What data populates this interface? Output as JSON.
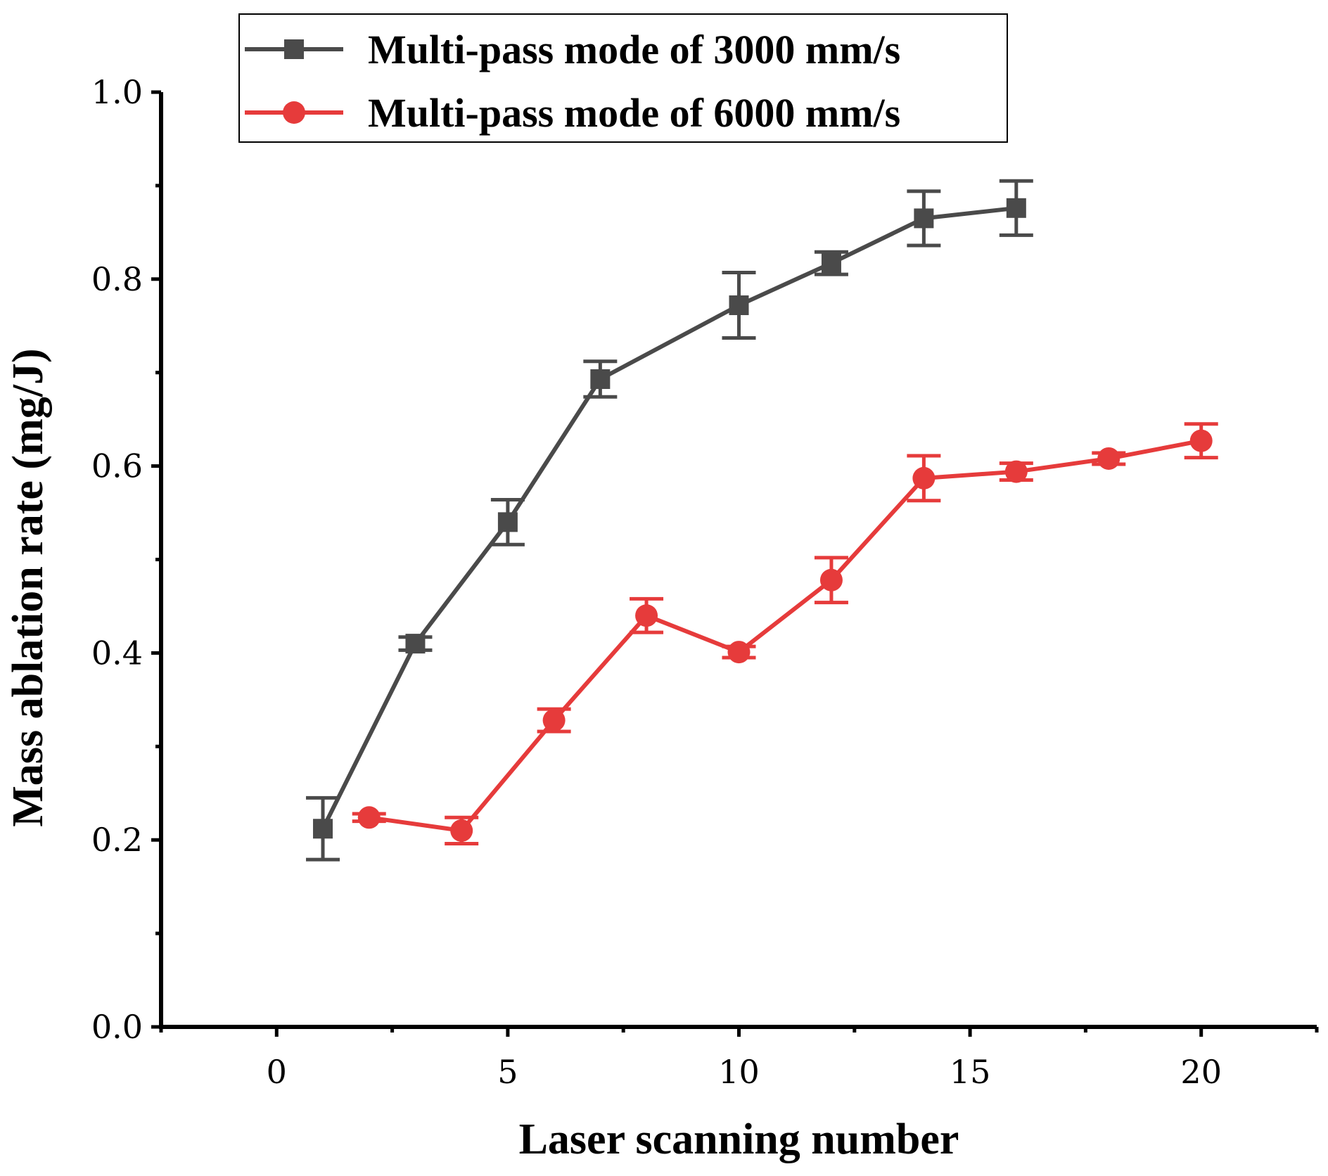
{
  "chart_data": {
    "type": "line",
    "title": "",
    "xlabel": "Laser scanning number",
    "ylabel": "Mass ablation rate (mg/J)",
    "xlim": [
      -2.5,
      22.5
    ],
    "ylim": [
      0.0,
      1.0
    ],
    "x_ticks": [
      0,
      5,
      10,
      15,
      20
    ],
    "x_tick_labels": [
      "0",
      "5",
      "10",
      "15",
      "20"
    ],
    "y_ticks": [
      0.0,
      0.2,
      0.4,
      0.6,
      0.8,
      1.0
    ],
    "y_tick_labels": [
      "0.0",
      "0.2",
      "0.4",
      "0.6",
      "0.8",
      "1.0"
    ],
    "grid": false,
    "legend_position": "top-center",
    "series": [
      {
        "name": "Multi-pass mode of 3000 mm/s",
        "color": "#4a4a4a",
        "marker": "square",
        "x": [
          1,
          3,
          5,
          7,
          10,
          12,
          14,
          16
        ],
        "y": [
          0.212,
          0.41,
          0.54,
          0.693,
          0.772,
          0.817,
          0.865,
          0.876
        ],
        "error": [
          0.033,
          0.007,
          0.024,
          0.019,
          0.035,
          0.012,
          0.029,
          0.029
        ]
      },
      {
        "name": "Multi-pass mode of 6000 mm/s",
        "color": "#e63b3b",
        "marker": "circle",
        "x": [
          2,
          4,
          6,
          8,
          10,
          12,
          14,
          16,
          18,
          20
        ],
        "y": [
          0.224,
          0.21,
          0.328,
          0.44,
          0.401,
          0.478,
          0.587,
          0.594,
          0.608,
          0.627
        ],
        "error": [
          0.004,
          0.014,
          0.012,
          0.018,
          0.006,
          0.024,
          0.024,
          0.009,
          0.006,
          0.018
        ]
      }
    ]
  }
}
